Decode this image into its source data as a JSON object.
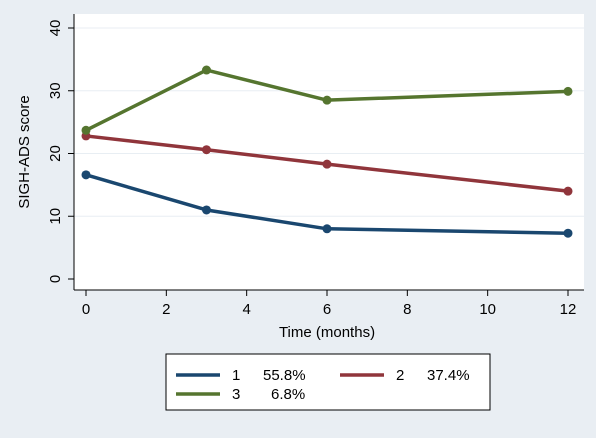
{
  "colors": {
    "outer_bg": "#e9eef3",
    "plot_bg": "#ffffff",
    "axis": "#000000",
    "grid": "#e8eef3",
    "series1": "#1a476f",
    "series2": "#90353b",
    "series3": "#55752f"
  },
  "chart_data": {
    "type": "line",
    "title": "",
    "xlabel": "Time (months)",
    "ylabel": "SIGH-ADS score",
    "xlim": [
      0,
      12
    ],
    "ylim": [
      0,
      40
    ],
    "xticks": [
      0,
      2,
      4,
      6,
      8,
      10,
      12
    ],
    "yticks": [
      0,
      10,
      20,
      30,
      40
    ],
    "grid": true,
    "legend_position": "bottom",
    "series": [
      {
        "name": "1",
        "pct": "55.8%",
        "color": "#1a476f",
        "x": [
          0,
          3,
          6,
          12
        ],
        "y": [
          16.6,
          11.0,
          8.0,
          7.3
        ]
      },
      {
        "name": "2",
        "pct": "37.4%",
        "color": "#90353b",
        "x": [
          0,
          3,
          6,
          12
        ],
        "y": [
          22.8,
          20.6,
          18.3,
          14.0
        ]
      },
      {
        "name": "3",
        "pct": "6.8%",
        "color": "#55752f",
        "x": [
          0,
          3,
          6,
          12
        ],
        "y": [
          23.7,
          33.3,
          28.5,
          29.9
        ]
      }
    ]
  }
}
